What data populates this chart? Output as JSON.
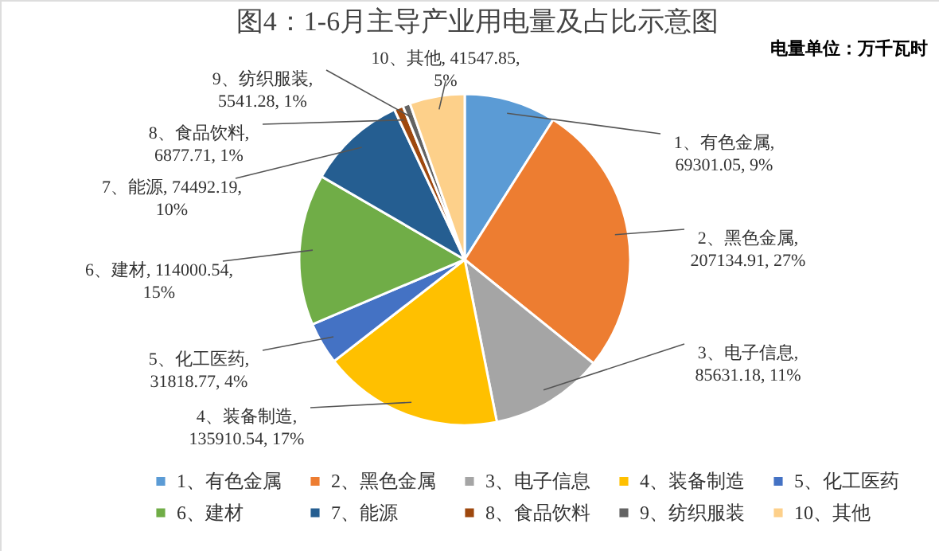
{
  "chart_data": {
    "type": "pie",
    "title": "图4：1-6月主导产业用电量及占比示意图",
    "annotations": [
      "电量单位：万千瓦时"
    ],
    "categories": [
      "1、有色金属",
      "2、黑色金属",
      "3、电子信息",
      "4、装备制造",
      "5、化工医药",
      "6、建材",
      "7、能源",
      "8、食品饮料",
      "9、纺织服装",
      "10、其他"
    ],
    "values": [
      69301.05,
      207134.91,
      85631.18,
      135910.54,
      31818.77,
      114000.54,
      74492.19,
      6877.71,
      5541.28,
      41547.85
    ],
    "value_labels": [
      "1、有色金属, 69301.05, 9%",
      "2、黑色金属, 207134.91, 27%",
      "3、电子信息, 85631.18, 11%",
      "4、装备制造, 135910.54, 17%",
      "5、化工医药, 31818.77, 4%",
      "6、建材, 114000.54, 15%",
      "7、能源, 74492.19, 10%",
      "8、食品饮料, 6877.71, 1%",
      "9、纺织服装, 5541.28, 1%",
      "10、其他, 41547.85, 5%"
    ],
    "colors": [
      "#5b9bd5",
      "#ed7d31",
      "#a5a5a5",
      "#ffc000",
      "#4472c4",
      "#70ad47",
      "#255e91",
      "#9e480e",
      "#636363",
      "#fdd08a"
    ],
    "legend": "bottom"
  }
}
